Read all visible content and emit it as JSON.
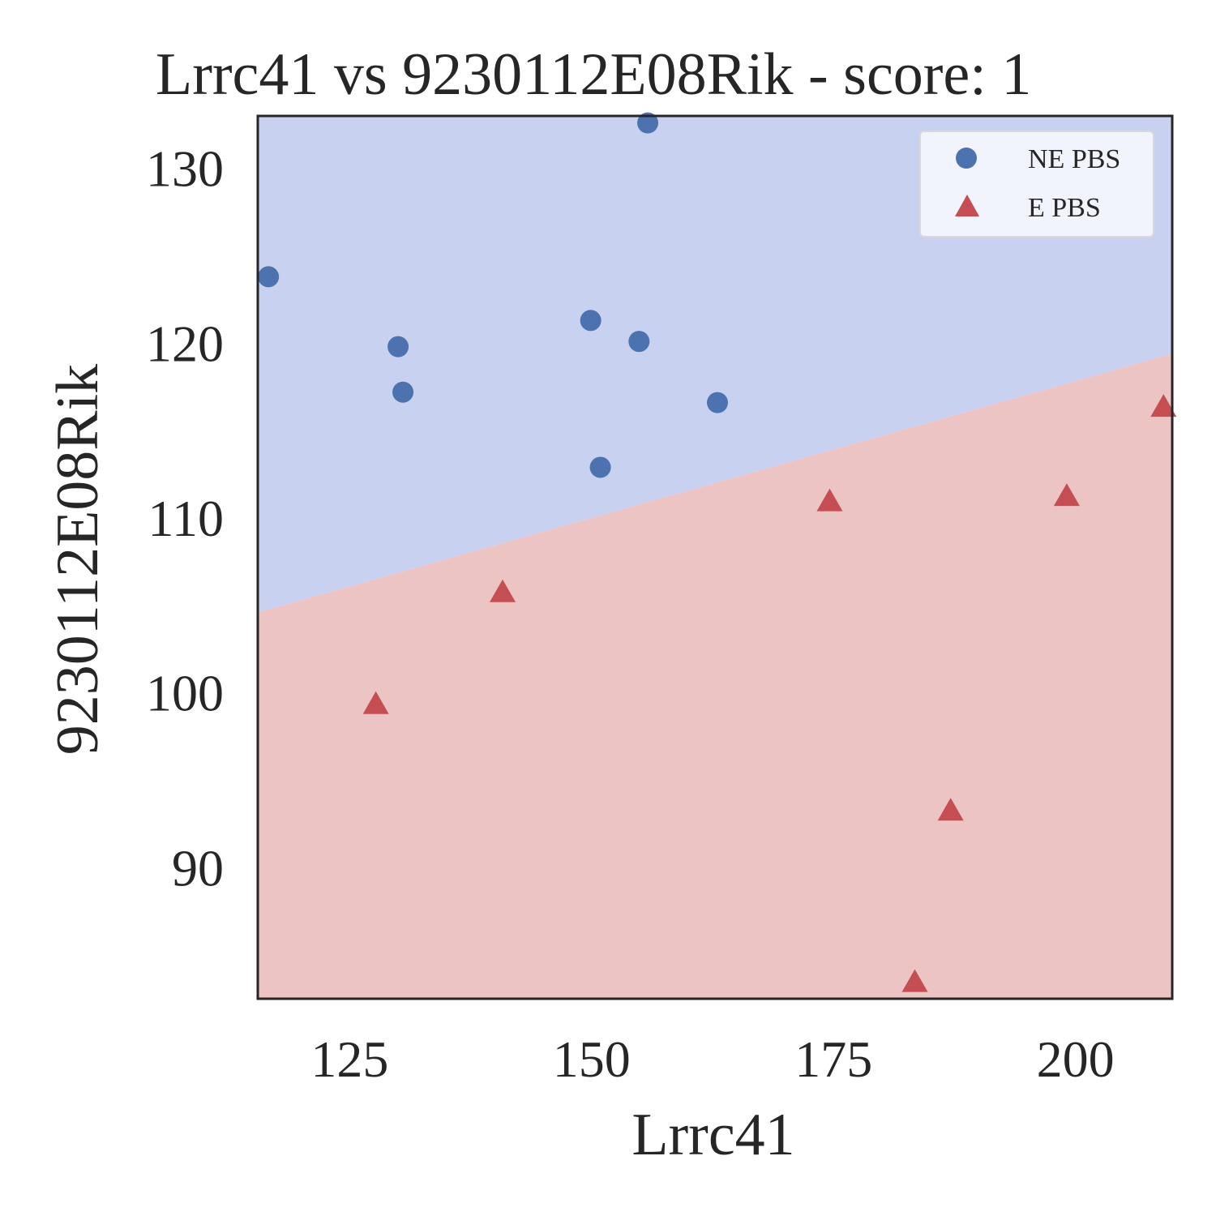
{
  "chart_data": {
    "type": "scatter",
    "title": "Lrrc41 vs 9230112E08Rik - score: 1",
    "xlabel": "Lrrc41",
    "ylabel": "9230112E08Rik",
    "xlim": [
      115.5,
      210
    ],
    "ylim": [
      82.5,
      133
    ],
    "xticks": [
      125,
      150,
      175,
      200
    ],
    "yticks": [
      90,
      100,
      110,
      120,
      130
    ],
    "grid": false,
    "legend_position": "top-right",
    "decision_boundary": {
      "points": [
        [
          115.5,
          104.6
        ],
        [
          210,
          119.4
        ]
      ]
    },
    "regions": [
      {
        "class": "NE PBS",
        "side": "above",
        "color": "#c9d1f1"
      },
      {
        "class": "E PBS",
        "side": "below",
        "color": "#edc4c4"
      }
    ],
    "series": [
      {
        "name": "NE PBS",
        "marker": "circle",
        "color": "#4c72b0",
        "points": [
          [
            116.6,
            123.8
          ],
          [
            130.0,
            119.8
          ],
          [
            130.5,
            117.2
          ],
          [
            149.9,
            121.3
          ],
          [
            150.9,
            112.9
          ],
          [
            154.9,
            120.1
          ],
          [
            155.8,
            132.6
          ],
          [
            163.0,
            116.6
          ]
        ]
      },
      {
        "name": "E PBS",
        "marker": "triangle",
        "color": "#c44e52",
        "points": [
          [
            127.7,
            99.3
          ],
          [
            140.8,
            105.7
          ],
          [
            174.6,
            110.9
          ],
          [
            183.4,
            83.4
          ],
          [
            187.1,
            93.2
          ],
          [
            199.1,
            111.2
          ],
          [
            209.1,
            116.3
          ]
        ]
      }
    ]
  }
}
